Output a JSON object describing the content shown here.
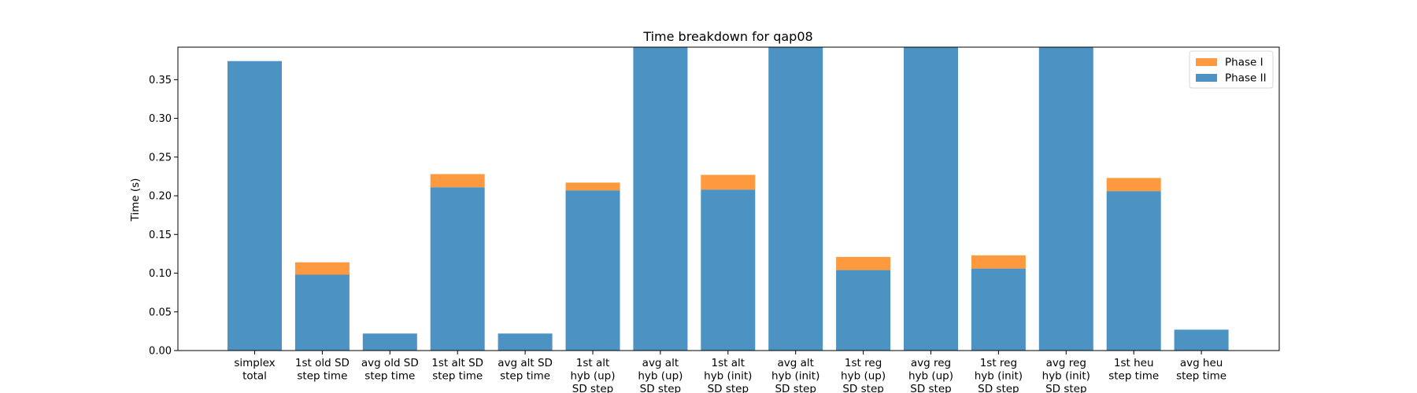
{
  "chart_data": {
    "type": "bar",
    "stacked": true,
    "title": "Time breakdown for qap08",
    "xlabel": "",
    "ylabel": "Time (s)",
    "ylim": [
      0,
      0.392
    ],
    "yticks": [
      0.0,
      0.05,
      0.1,
      0.15,
      0.2,
      0.25,
      0.3,
      0.35
    ],
    "ytick_labels": [
      "0.00",
      "0.05",
      "0.10",
      "0.15",
      "0.20",
      "0.25",
      "0.30",
      "0.35"
    ],
    "grid": false,
    "legend_position": "top-right",
    "categories": [
      [
        "simplex",
        "total"
      ],
      [
        "1st old SD",
        "step time"
      ],
      [
        "avg old SD",
        "step time"
      ],
      [
        "1st alt SD",
        "step time"
      ],
      [
        "avg alt SD",
        "step time"
      ],
      [
        "1st alt",
        "hyb (up)",
        "SD step"
      ],
      [
        "avg alt",
        "hyb (up)",
        "SD step"
      ],
      [
        "1st alt",
        "hyb (init)",
        "SD step"
      ],
      [
        "avg alt",
        "hyb (init)",
        "SD step"
      ],
      [
        "1st reg",
        "hyb (up)",
        "SD step"
      ],
      [
        "avg reg",
        "hyb (up)",
        "SD step"
      ],
      [
        "1st reg",
        "hyb (init)",
        "SD step"
      ],
      [
        "avg reg",
        "hyb (init)",
        "SD step"
      ],
      [
        "1st heu",
        "step time"
      ],
      [
        "avg heu",
        "step time"
      ]
    ],
    "series": [
      {
        "name": "Phase II",
        "color": "#4c93c3",
        "values": [
          0.374,
          0.098,
          0.022,
          0.211,
          0.022,
          0.207,
          0.4,
          0.208,
          0.4,
          0.104,
          0.4,
          0.106,
          0.4,
          0.206,
          0.027
        ]
      },
      {
        "name": "Phase I",
        "color": "#fd9a3f",
        "values": [
          0.0,
          0.016,
          0.0,
          0.017,
          0.0,
          0.01,
          0.0,
          0.019,
          0.0,
          0.017,
          0.0,
          0.017,
          0.0,
          0.017,
          0.0
        ]
      }
    ],
    "legend_order": [
      "Phase I",
      "Phase II"
    ]
  }
}
